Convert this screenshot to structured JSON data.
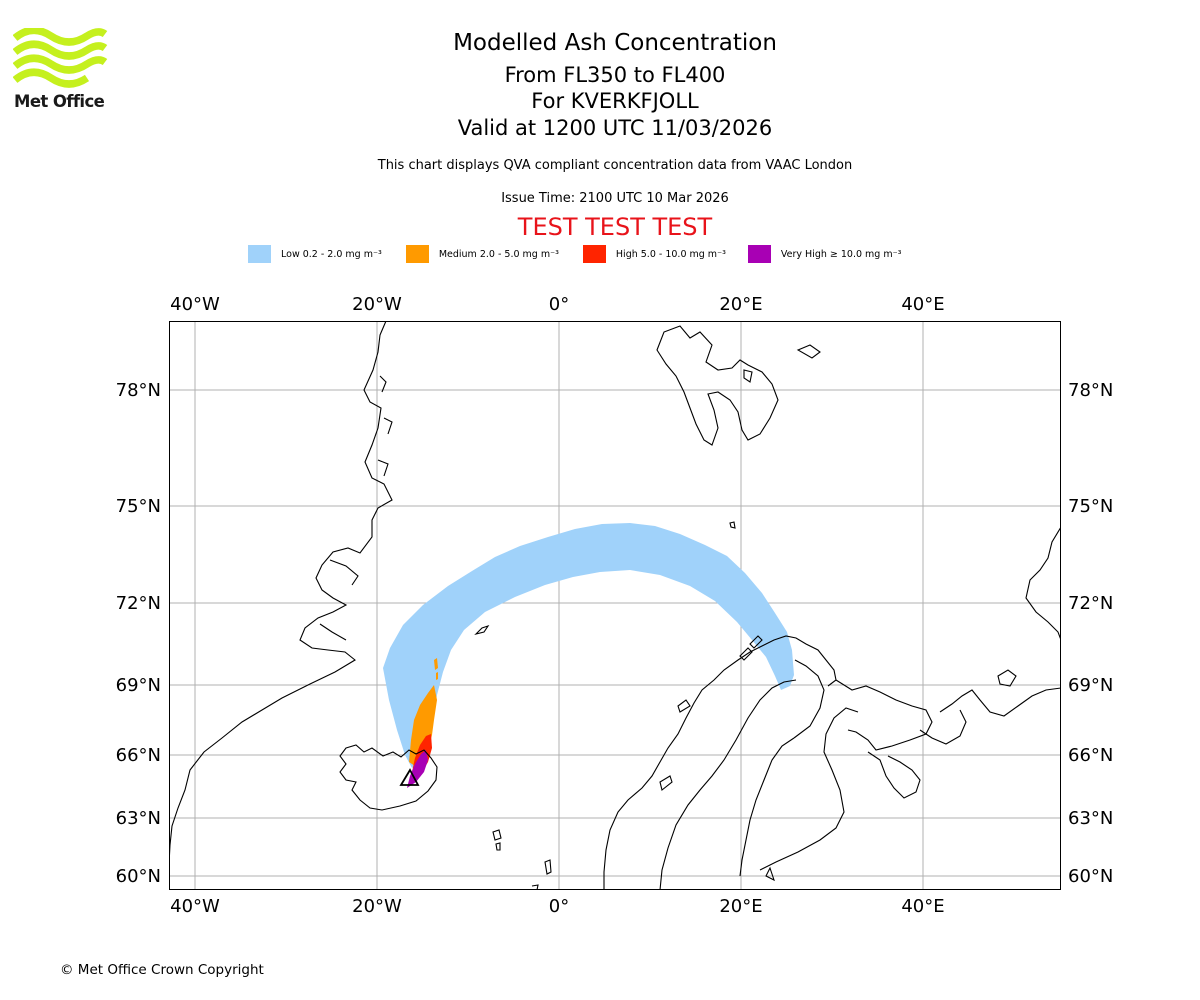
{
  "branding": {
    "logo_text": "Met Office",
    "logo_color": "#c5f01e"
  },
  "header": {
    "title": "Modelled Ash Concentration",
    "flight_levels": "From FL350 to FL400",
    "volcano": "For KVERKFJOLL",
    "valid_time": "Valid at 1200 UTC 11/03/2026",
    "subtitle": "This chart displays QVA compliant concentration data from VAAC London",
    "issue_time": "Issue Time: 2100 UTC 10 Mar 2026",
    "test_banner": "TEST TEST TEST"
  },
  "legend": {
    "items": [
      {
        "label": "Low 0.2 - 2.0 mg m⁻³",
        "color": "#a0d2fa"
      },
      {
        "label": "Medium 2.0 - 5.0 mg m⁻³",
        "color": "#ff9a00"
      },
      {
        "label": "High 5.0 - 10.0 mg m⁻³",
        "color": "#ff2400"
      },
      {
        "label": "Very High  ≥  10.0 mg m⁻³",
        "color": "#a800b4"
      }
    ]
  },
  "map": {
    "lon_range": [
      -43,
      55
    ],
    "lat_range": [
      59.5,
      80.5
    ],
    "lon_ticks": [
      {
        "value": -40,
        "label": "40°W"
      },
      {
        "value": -20,
        "label": "20°W"
      },
      {
        "value": 0,
        "label": "0°"
      },
      {
        "value": 20,
        "label": "20°E"
      },
      {
        "value": 40,
        "label": "40°E"
      }
    ],
    "lat_ticks": [
      {
        "value": 78,
        "label": "78°N"
      },
      {
        "value": 75,
        "label": "75°N"
      },
      {
        "value": 72,
        "label": "72°N"
      },
      {
        "value": 69,
        "label": "69°N"
      },
      {
        "value": 66,
        "label": "66°N"
      },
      {
        "value": 63,
        "label": "63°N"
      },
      {
        "value": 60,
        "label": "60°N"
      }
    ],
    "volcano_marker": "triangle"
  },
  "footer": {
    "copyright": "© Met Office Crown Copyright"
  }
}
